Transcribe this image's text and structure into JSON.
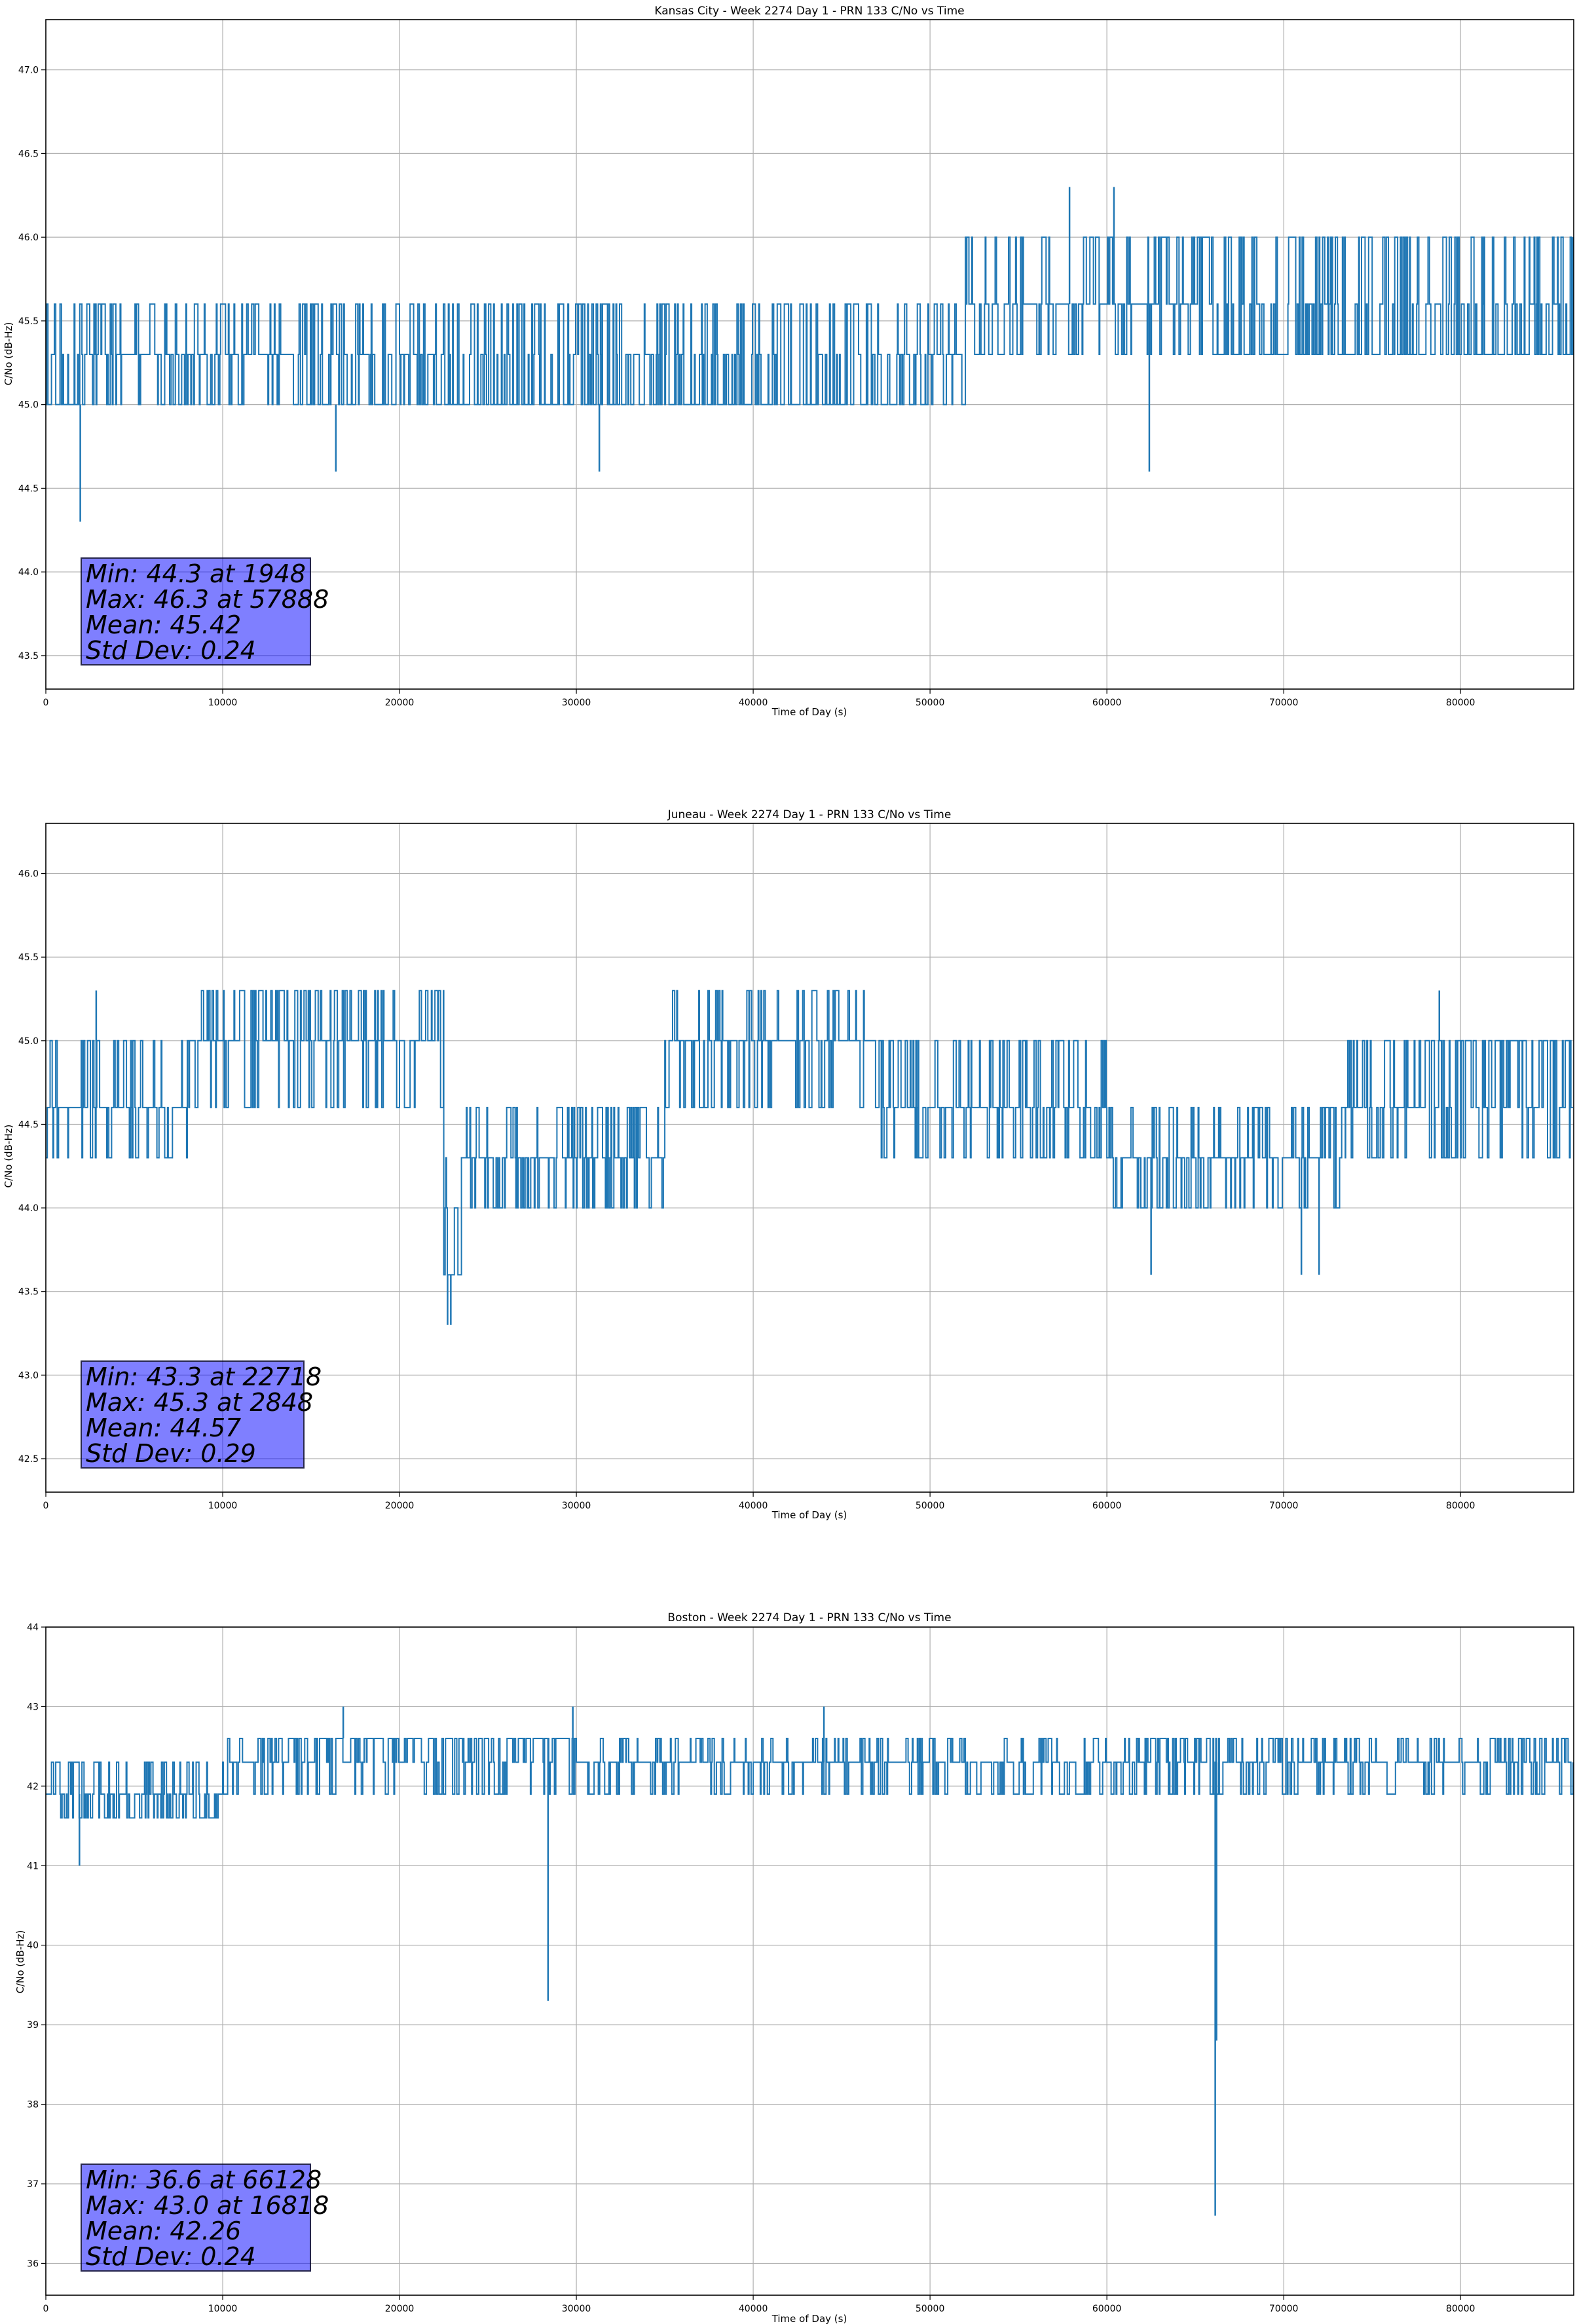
{
  "chart_data": [
    {
      "type": "line",
      "title": "Kansas City - Week 2274 Day 1 - PRN 133 C/No vs Time",
      "xlabel": "Time of Day (s)",
      "ylabel": "C/No (dB-Hz)",
      "xlim": [
        0,
        86400
      ],
      "ylim": [
        43.3,
        47.3
      ],
      "xticks": [
        0,
        10000,
        20000,
        30000,
        40000,
        50000,
        60000,
        70000,
        80000
      ],
      "yticks": [
        43.5,
        44.0,
        44.5,
        45.0,
        45.5,
        46.0,
        46.5,
        47.0
      ],
      "ytick_decimals": 1,
      "grid": true,
      "line_color": "#1f77b4",
      "series": [
        {
          "quantum": 0.33,
          "segments": [
            {
              "x0": 0,
              "x1": 3000,
              "levels": [
                45.0,
                45.3,
                45.6
              ]
            },
            {
              "x0": 3000,
              "x1": 9000,
              "levels": [
                45.3,
                45.6,
                45.0
              ]
            },
            {
              "x0": 9000,
              "x1": 14000,
              "levels": [
                45.3,
                45.0,
                45.6
              ]
            },
            {
              "x0": 14000,
              "x1": 50000,
              "levels": [
                45.0,
                45.3,
                45.6
              ]
            },
            {
              "x0": 50000,
              "x1": 52000,
              "levels": [
                45.3,
                45.6,
                45.0
              ]
            },
            {
              "x0": 52000,
              "x1": 66000,
              "levels": [
                45.6,
                46.0,
                45.3
              ]
            },
            {
              "x0": 66000,
              "x1": 86400,
              "levels": [
                45.3,
                45.6,
                46.0
              ]
            }
          ],
          "spikes": [
            {
              "x": 1948,
              "y": 44.3
            },
            {
              "x": 16400,
              "y": 44.6
            },
            {
              "x": 31300,
              "y": 44.6
            },
            {
              "x": 57888,
              "y": 46.3
            },
            {
              "x": 60400,
              "y": 46.3
            },
            {
              "x": 62400,
              "y": 44.6
            }
          ]
        }
      ],
      "stats": [
        "Min: 44.3 at 1948",
        "Max: 46.3 at 57888",
        "Mean: 45.42",
        "Std Dev: 0.24"
      ]
    },
    {
      "type": "line",
      "title": "Juneau - Week 2274 Day 1 - PRN 133 C/No vs Time",
      "xlabel": "Time of Day (s)",
      "ylabel": "C/No (dB-Hz)",
      "xlim": [
        0,
        86400
      ],
      "ylim": [
        42.3,
        46.3
      ],
      "xticks": [
        0,
        10000,
        20000,
        30000,
        40000,
        50000,
        60000,
        70000,
        80000
      ],
      "yticks": [
        42.5,
        43.0,
        43.5,
        44.0,
        44.5,
        45.0,
        45.5,
        46.0
      ],
      "ytick_decimals": 1,
      "grid": true,
      "line_color": "#1f77b4",
      "series": [
        {
          "quantum": 0.33,
          "segments": [
            {
              "x0": 0,
              "x1": 8000,
              "levels": [
                44.6,
                45.0,
                44.3
              ]
            },
            {
              "x0": 8000,
              "x1": 22500,
              "levels": [
                45.0,
                44.6,
                45.3
              ]
            },
            {
              "x0": 22500,
              "x1": 23500,
              "levels": [
                43.6,
                44.0,
                44.3
              ]
            },
            {
              "x0": 23500,
              "x1": 30000,
              "levels": [
                44.3,
                44.6,
                44.0
              ]
            },
            {
              "x0": 30000,
              "x1": 35000,
              "levels": [
                44.3,
                44.6,
                44.0
              ]
            },
            {
              "x0": 35000,
              "x1": 47000,
              "levels": [
                45.0,
                44.6,
                45.3
              ]
            },
            {
              "x0": 47000,
              "x1": 60000,
              "levels": [
                44.6,
                45.0,
                44.3
              ]
            },
            {
              "x0": 60000,
              "x1": 73500,
              "levels": [
                44.3,
                44.0,
                44.6
              ]
            },
            {
              "x0": 73500,
              "x1": 78000,
              "levels": [
                44.6,
                44.3,
                45.0
              ]
            },
            {
              "x0": 78000,
              "x1": 86400,
              "levels": [
                45.0,
                44.6,
                44.3
              ]
            }
          ],
          "spikes": [
            {
              "x": 2848,
              "y": 45.3
            },
            {
              "x": 22718,
              "y": 43.3
            },
            {
              "x": 22900,
              "y": 43.3
            },
            {
              "x": 62500,
              "y": 43.6
            },
            {
              "x": 71000,
              "y": 43.6
            },
            {
              "x": 72000,
              "y": 43.6
            },
            {
              "x": 78800,
              "y": 45.3
            }
          ]
        }
      ],
      "stats": [
        "Min: 43.3 at 22718",
        "Max: 45.3 at 2848",
        "Mean: 44.57",
        "Std Dev: 0.29"
      ]
    },
    {
      "type": "line",
      "title": "Boston - Week 2274 Day 1 - PRN 133 C/No vs Time",
      "xlabel": "Time of Day (s)",
      "ylabel": "C/No (dB-Hz)",
      "xlim": [
        0,
        86400
      ],
      "ylim": [
        35.6,
        44.0
      ],
      "xticks": [
        0,
        10000,
        20000,
        30000,
        40000,
        50000,
        60000,
        70000,
        80000
      ],
      "yticks": [
        36,
        37,
        38,
        39,
        40,
        41,
        42,
        43,
        44
      ],
      "ytick_decimals": 0,
      "grid": true,
      "line_color": "#1f77b4",
      "series": [
        {
          "quantum": 0.33,
          "segments": [
            {
              "x0": 0,
              "x1": 4500,
              "levels": [
                41.9,
                41.6,
                42.3
              ]
            },
            {
              "x0": 4500,
              "x1": 10000,
              "levels": [
                41.9,
                42.3,
                41.6
              ]
            },
            {
              "x0": 10000,
              "x1": 12000,
              "levels": [
                42.3,
                41.9,
                42.6
              ]
            },
            {
              "x0": 12000,
              "x1": 30000,
              "levels": [
                42.6,
                42.3,
                41.9
              ]
            },
            {
              "x0": 30000,
              "x1": 37000,
              "levels": [
                42.3,
                42.6,
                41.9
              ]
            },
            {
              "x0": 37000,
              "x1": 86400,
              "levels": [
                42.3,
                42.6,
                41.9
              ]
            }
          ],
          "spikes": [
            {
              "x": 1900,
              "y": 41.0
            },
            {
              "x": 16818,
              "y": 43.0
            },
            {
              "x": 28400,
              "y": 39.3
            },
            {
              "x": 29800,
              "y": 43.0
            },
            {
              "x": 44000,
              "y": 43.0
            },
            {
              "x": 66128,
              "y": 36.6
            },
            {
              "x": 66200,
              "y": 38.8
            }
          ]
        }
      ],
      "stats": [
        "Min: 36.6 at 66128",
        "Max: 43.0 at 16818",
        "Mean: 42.26",
        "Std Dev: 0.24"
      ]
    }
  ]
}
